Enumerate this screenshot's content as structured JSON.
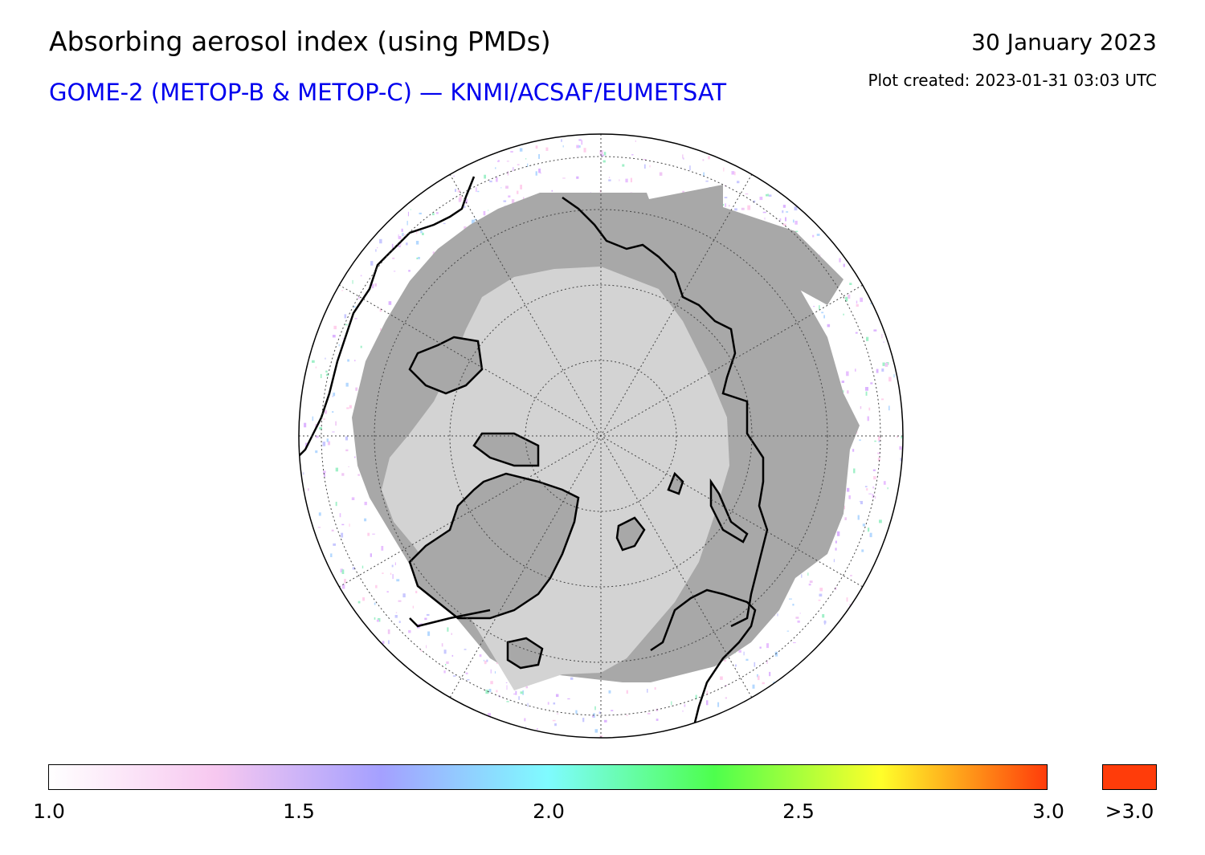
{
  "header": {
    "title": "Absorbing aerosol index (using PMDs)",
    "subtitle": "GOME-2 (METOP-B & METOP-C) — KNMI/ACSAF/EUMETSAT",
    "date": "30 January 2023",
    "created": "Plot created: 2023-01-31 03:03 UTC"
  },
  "map": {
    "projection": "north-polar-stereographic",
    "center": "North Pole",
    "colors": {
      "polar_night_ocean": "#d3d3d3",
      "polar_night_land": "#a8a8a8",
      "coastline": "#000000",
      "graticule": "#444444"
    }
  },
  "colorbar": {
    "min": 1.0,
    "max": 3.0,
    "ticks": [
      "1.0",
      "1.5",
      "2.0",
      "2.5",
      "3.0"
    ],
    "over_label": ">3.0",
    "over_color": "#ff3c0a",
    "colors": [
      "#ffffff",
      "#f7c8f0",
      "#a4a0ff",
      "#7ffbff",
      "#4dff4d",
      "#ffff2a",
      "#ff3c0a"
    ]
  }
}
